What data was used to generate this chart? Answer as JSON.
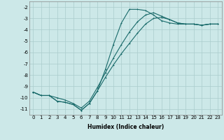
{
  "xlabel": "Humidex (Indice chaleur)",
  "ylabel": "",
  "background_color": "#cce8e8",
  "grid_color": "#aacccc",
  "line_color": "#1a6b6b",
  "xlim": [
    -0.5,
    23.5
  ],
  "ylim": [
    -11.5,
    -1.5
  ],
  "xticks": [
    0,
    1,
    2,
    3,
    4,
    5,
    6,
    7,
    8,
    9,
    10,
    11,
    12,
    13,
    14,
    15,
    16,
    17,
    18,
    19,
    20,
    21,
    22,
    23
  ],
  "yticks": [
    -2,
    -3,
    -4,
    -5,
    -6,
    -7,
    -8,
    -9,
    -10,
    -11
  ],
  "line1_x": [
    0,
    1,
    2,
    3,
    4,
    5,
    6,
    7,
    8,
    9,
    10,
    11,
    12,
    13,
    14,
    15,
    16,
    17,
    18,
    19,
    20,
    21,
    22,
    23
  ],
  "line1_y": [
    -9.5,
    -9.8,
    -9.8,
    -10.3,
    -10.4,
    -10.6,
    -11.1,
    -10.5,
    -9.4,
    -7.5,
    -5.3,
    -3.4,
    -2.2,
    -2.2,
    -2.3,
    -2.7,
    -3.2,
    -3.4,
    -3.5,
    -3.5,
    -3.5,
    -3.6,
    -3.5,
    -3.5
  ],
  "line2_x": [
    0,
    1,
    2,
    3,
    4,
    5,
    6,
    7,
    8,
    9,
    10,
    11,
    12,
    13,
    14,
    15,
    16,
    17,
    18,
    19,
    20,
    21,
    22,
    23
  ],
  "line2_y": [
    -9.5,
    -9.8,
    -9.8,
    -10.3,
    -10.4,
    -10.6,
    -11.1,
    -10.5,
    -9.4,
    -8.2,
    -7.1,
    -6.1,
    -5.2,
    -4.3,
    -3.5,
    -3.0,
    -2.9,
    -3.1,
    -3.4,
    -3.5,
    -3.5,
    -3.6,
    -3.5,
    -3.5
  ],
  "line3_x": [
    0,
    1,
    2,
    3,
    4,
    5,
    6,
    7,
    8,
    9,
    10,
    11,
    12,
    13,
    14,
    15,
    16,
    17,
    18,
    19,
    20,
    21,
    22,
    23
  ],
  "line3_y": [
    -9.5,
    -9.8,
    -9.8,
    -10.0,
    -10.2,
    -10.5,
    -10.9,
    -10.3,
    -9.1,
    -7.8,
    -6.5,
    -5.3,
    -4.2,
    -3.3,
    -2.7,
    -2.5,
    -2.8,
    -3.1,
    -3.4,
    -3.5,
    -3.5,
    -3.6,
    -3.5,
    -3.5
  ],
  "fontsize_label": 5.5,
  "fontsize_tick": 5.0,
  "linewidth": 0.8,
  "markersize": 2.0
}
